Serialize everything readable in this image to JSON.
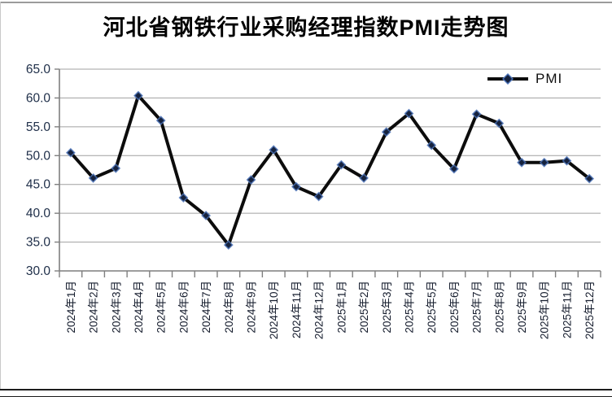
{
  "title": "河北省钢铁行业采购经理指数PMI走势图",
  "legend": {
    "label": "PMI"
  },
  "colors": {
    "line": "#0c0c0c",
    "marker_fill": "#16223d",
    "marker_halo": "#4a72b8",
    "grid": "#a0a0a0",
    "axis": "#7f7f7f",
    "y_label": "#20304a",
    "x_label": "#161d2e",
    "title": "#000000"
  },
  "chart_data": {
    "type": "line",
    "title": "河北省钢铁行业采购经理指数PMI走势图",
    "categories": [
      "2024年1月",
      "2024年2月",
      "2024年3月",
      "2024年4月",
      "2024年5月",
      "2024年6月",
      "2024年7月",
      "2024年8月",
      "2024年9月",
      "2024年10月",
      "2024年11月",
      "2024年12月",
      "2025年1月",
      "2025年2月",
      "2025年3月",
      "2025年4月",
      "2025年5月",
      "2025年6月",
      "2025年7月",
      "2025年8月",
      "2025年9月",
      "2025年10月",
      "2025年11月",
      "2025年12月"
    ],
    "series": [
      {
        "name": "PMI",
        "values": [
          50.5,
          46.1,
          47.8,
          60.4,
          56.1,
          42.7,
          39.6,
          34.5,
          45.8,
          51.0,
          44.6,
          42.9,
          48.4,
          46.1,
          54.1,
          57.3,
          51.8,
          47.7,
          57.2,
          55.6,
          48.8,
          48.8,
          49.1,
          46.0
        ]
      }
    ],
    "ylim": [
      30.0,
      65.0
    ],
    "yticks": [
      "65.0",
      "60.0",
      "55.0",
      "50.0",
      "45.0",
      "40.0",
      "35.0",
      "30.0"
    ],
    "xlabel": "",
    "ylabel": "",
    "grid": true,
    "legend_position": "top-right"
  }
}
